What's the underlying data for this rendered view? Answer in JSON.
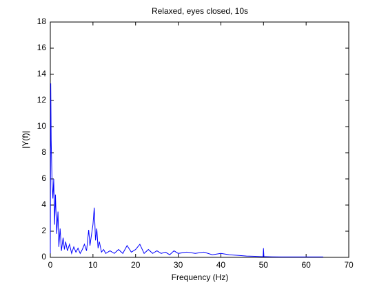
{
  "chart_data": {
    "type": "line",
    "title": "Relaxed, eyes closed, 10s",
    "x_label": "Frequency (Hz)",
    "y_label": "|Y(f)|",
    "x": [
      0,
      0.1,
      0.2,
      0.4,
      0.6,
      0.8,
      1,
      1.2,
      1.5,
      1.8,
      2,
      2.3,
      2.6,
      3,
      3.3,
      3.6,
      4,
      4.5,
      5,
      5.5,
      6,
      6.5,
      7,
      7.5,
      8,
      8.5,
      9,
      9.3,
      9.6,
      10,
      10.3,
      10.6,
      10.9,
      11.2,
      11.5,
      12,
      12.5,
      13,
      14,
      15,
      16,
      17,
      18,
      19,
      20,
      21,
      22,
      23,
      24,
      25,
      26,
      27,
      28,
      29,
      30,
      32,
      34,
      36,
      38,
      40,
      42,
      44,
      46,
      48,
      49.5,
      49.9,
      50,
      50.1,
      50.5,
      52,
      54,
      56,
      58,
      60,
      62,
      64
    ],
    "series": [
      {
        "color": "#0000ff",
        "values": [
          0.3,
          13.3,
          9,
          5.8,
          4.5,
          6,
          2.5,
          4.8,
          1.8,
          3.5,
          0.8,
          2.2,
          0.5,
          1.5,
          0.6,
          1.2,
          0.5,
          1,
          0.3,
          0.8,
          0.4,
          0.7,
          0.3,
          0.6,
          1,
          0.5,
          2.1,
          0.9,
          1.6,
          2.5,
          3.8,
          1.3,
          2.2,
          0.7,
          1.2,
          0.4,
          0.6,
          0.3,
          0.5,
          0.3,
          0.6,
          0.3,
          0.9,
          0.4,
          0.6,
          1,
          0.3,
          0.6,
          0.3,
          0.5,
          0.3,
          0.4,
          0.2,
          0.5,
          0.3,
          0.4,
          0.3,
          0.4,
          0.2,
          0.3,
          0.2,
          0.15,
          0.1,
          0.08,
          0.05,
          0.05,
          0.7,
          0.05,
          0.05,
          0.04,
          0.03,
          0.03,
          0.03,
          0.03,
          0.03,
          0.03
        ]
      }
    ],
    "xlim": [
      0,
      70
    ],
    "ylim": [
      0,
      18
    ],
    "xticks": [
      0,
      10,
      20,
      30,
      40,
      50,
      60,
      70
    ],
    "yticks": [
      0,
      2,
      4,
      6,
      8,
      10,
      12,
      14,
      16,
      18
    ]
  }
}
